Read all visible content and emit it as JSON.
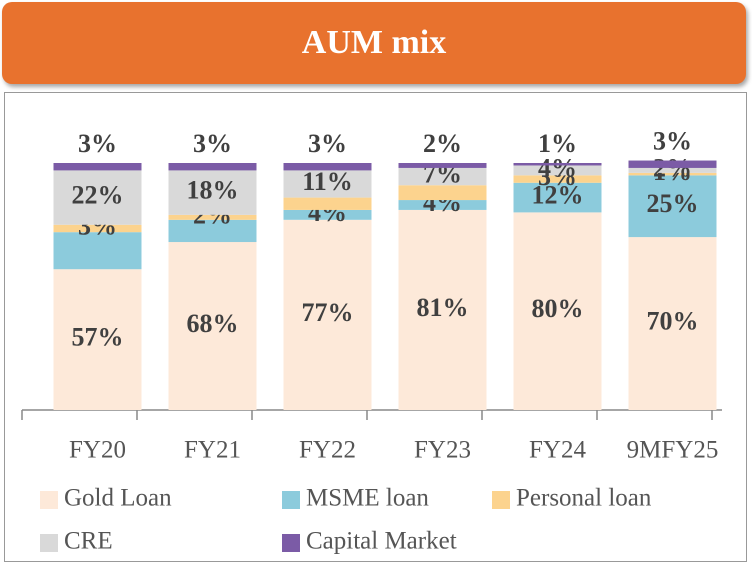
{
  "chart_data": {
    "type": "stacked_bar",
    "title": "AUM mix",
    "categories": [
      "FY20",
      "FY21",
      "FY22",
      "FY23",
      "FY24",
      "9MFY25"
    ],
    "ylim": [
      0,
      100
    ],
    "series": [
      {
        "name": "Gold Loan",
        "color": "#fde9d9",
        "values": [
          57,
          68,
          77,
          81,
          80,
          70
        ],
        "value_labels": [
          "57%",
          "68%",
          "77%",
          "81%",
          "80%",
          "70%"
        ]
      },
      {
        "name": "MSME loan",
        "color": "#8ccbdc",
        "values": [
          15,
          9,
          4,
          4,
          12,
          25
        ],
        "value_labels": [
          null,
          null,
          "4%",
          "4%",
          "12%",
          "25%"
        ]
      },
      {
        "name": "Personal loan",
        "color": "#fcd38e",
        "values": [
          3,
          2,
          5,
          6,
          3,
          1
        ],
        "value_labels": [
          "3%",
          "2%",
          null,
          null,
          "3%",
          "1%"
        ]
      },
      {
        "name": "CRE",
        "color": "#d9d9d9",
        "values": [
          22,
          18,
          11,
          7,
          4,
          2
        ],
        "value_labels": [
          "22%",
          "18%",
          "11%",
          "7%",
          "4%",
          "2%"
        ]
      },
      {
        "name": "Capital Market",
        "color": "#7b5ba6",
        "values": [
          3,
          3,
          3,
          2,
          1,
          3
        ],
        "value_labels": [
          "3%",
          "3%",
          "3%",
          "2%",
          "1%",
          "3%"
        ]
      }
    ]
  }
}
